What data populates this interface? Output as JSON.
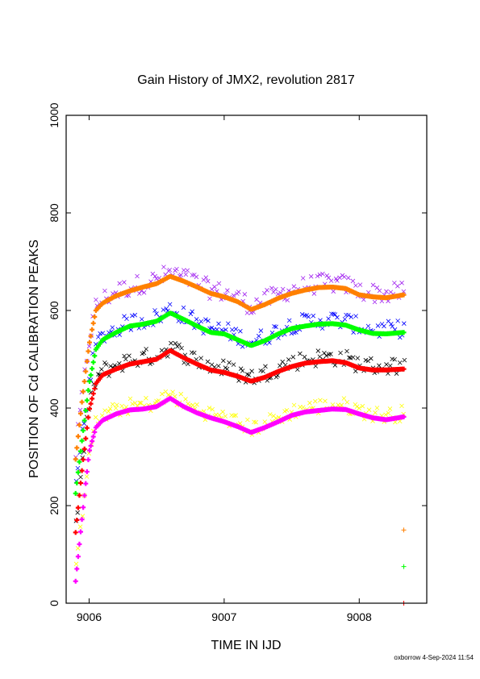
{
  "footer": "oxborrow  4-Sep-2024 11:54",
  "chart_data": {
    "type": "scatter",
    "title": "Gain History of JMX2, revolution 2817",
    "xlabel": "TIME IN IJD",
    "ylabel": "POSITION OF Cd CALIBRATION PEAKS",
    "xlim": [
      9005.83,
      9008.5
    ],
    "ylim": [
      0,
      1000
    ],
    "xticks": [
      "9006",
      "9007",
      "9008"
    ],
    "xtick_values": [
      9006,
      9007,
      9008
    ],
    "yticks": [
      "0",
      "200",
      "400",
      "600",
      "800",
      "1000"
    ],
    "ytick_values": [
      0,
      200,
      400,
      600,
      800,
      1000
    ],
    "grid": false,
    "legend": "none",
    "fit_series": [
      {
        "color": "#ff8000",
        "x": [
          9005.9,
          9005.95,
          9006.0,
          9006.05,
          9006.1,
          9006.2,
          9006.3,
          9006.4,
          9006.5,
          9006.6,
          9006.7,
          9006.8,
          9006.9,
          9007.0,
          9007.1,
          9007.2,
          9007.3,
          9007.4,
          9007.5,
          9007.6,
          9007.7,
          9007.8,
          9007.9,
          9008.0,
          9008.1,
          9008.2,
          9008.33
        ],
        "y": [
          295,
          420,
          530,
          600,
          615,
          630,
          640,
          648,
          655,
          670,
          660,
          648,
          635,
          628,
          618,
          602,
          612,
          625,
          635,
          642,
          647,
          648,
          645,
          632,
          628,
          626,
          632
        ]
      },
      {
        "color": "#00ff00",
        "x": [
          9005.9,
          9005.95,
          9006.0,
          9006.05,
          9006.1,
          9006.2,
          9006.3,
          9006.4,
          9006.5,
          9006.6,
          9006.7,
          9006.8,
          9006.9,
          9007.0,
          9007.1,
          9007.2,
          9007.3,
          9007.4,
          9007.5,
          9007.6,
          9007.7,
          9007.8,
          9007.9,
          9008.0,
          9008.1,
          9008.2,
          9008.33
        ],
        "y": [
          225,
          340,
          450,
          520,
          540,
          555,
          568,
          572,
          578,
          595,
          582,
          568,
          555,
          552,
          540,
          528,
          538,
          552,
          563,
          568,
          572,
          573,
          570,
          560,
          553,
          552,
          555
        ]
      },
      {
        "color": "#ff0000",
        "x": [
          9005.9,
          9005.95,
          9006.0,
          9006.05,
          9006.1,
          9006.2,
          9006.3,
          9006.4,
          9006.5,
          9006.6,
          9006.7,
          9006.8,
          9006.9,
          9007.0,
          9007.1,
          9007.2,
          9007.3,
          9007.4,
          9007.5,
          9007.6,
          9007.7,
          9007.8,
          9007.9,
          9008.0,
          9008.1,
          9008.2,
          9008.33
        ],
        "y": [
          145,
          280,
          395,
          450,
          468,
          480,
          490,
          495,
          500,
          518,
          503,
          490,
          478,
          473,
          465,
          455,
          463,
          475,
          485,
          492,
          495,
          497,
          493,
          482,
          478,
          478,
          480
        ]
      },
      {
        "color": "#ff00ff",
        "x": [
          9005.9,
          9005.95,
          9006.0,
          9006.05,
          9006.1,
          9006.2,
          9006.3,
          9006.4,
          9006.5,
          9006.6,
          9006.7,
          9006.8,
          9006.9,
          9007.0,
          9007.1,
          9007.2,
          9007.3,
          9007.4,
          9007.5,
          9007.6,
          9007.7,
          9007.8,
          9007.9,
          9008.0,
          9008.1,
          9008.2,
          9008.33
        ],
        "y": [
          45,
          180,
          310,
          360,
          375,
          388,
          396,
          398,
          403,
          420,
          403,
          390,
          380,
          372,
          362,
          350,
          360,
          372,
          385,
          392,
          395,
          398,
          397,
          388,
          380,
          376,
          382
        ]
      }
    ],
    "scatter_series": [
      {
        "color": "#a020f0",
        "center": 0,
        "spread": 20
      },
      {
        "color": "#0000ff",
        "center": 1,
        "spread": 18
      },
      {
        "color": "#000000",
        "center": 2,
        "spread": 18
      },
      {
        "color": "#ffff00",
        "center": 3,
        "spread": 16
      }
    ],
    "marker_points": [
      {
        "color": "#ff8000",
        "x": 9008.33,
        "y": 150
      },
      {
        "color": "#00ff00",
        "x": 9008.33,
        "y": 75
      },
      {
        "color": "#ff0000",
        "x": 9008.33,
        "y": 0
      }
    ]
  }
}
